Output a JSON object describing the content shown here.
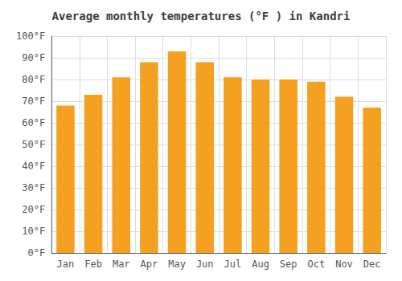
{
  "chart_data": {
    "type": "bar",
    "title": "Average monthly temperatures (°F ) in Kandri",
    "categories": [
      "Jan",
      "Feb",
      "Mar",
      "Apr",
      "May",
      "Jun",
      "Jul",
      "Aug",
      "Sep",
      "Oct",
      "Nov",
      "Dec"
    ],
    "values": [
      68,
      73,
      81,
      88,
      93,
      88,
      81,
      80,
      80,
      79,
      72,
      67
    ],
    "color": "#F5A020",
    "ylim": [
      0,
      100
    ],
    "yticks": [
      {
        "value": 0,
        "label": "0°F"
      },
      {
        "value": 10,
        "label": "10°F"
      },
      {
        "value": 20,
        "label": "20°F"
      },
      {
        "value": 30,
        "label": "30°F"
      },
      {
        "value": 40,
        "label": "40°F"
      },
      {
        "value": 50,
        "label": "50°F"
      },
      {
        "value": 60,
        "label": "60°F"
      },
      {
        "value": 70,
        "label": "70°F"
      },
      {
        "value": 80,
        "label": "80°F"
      },
      {
        "value": 90,
        "label": "90°F"
      },
      {
        "value": 100,
        "label": "100°F"
      }
    ],
    "grid": true
  }
}
